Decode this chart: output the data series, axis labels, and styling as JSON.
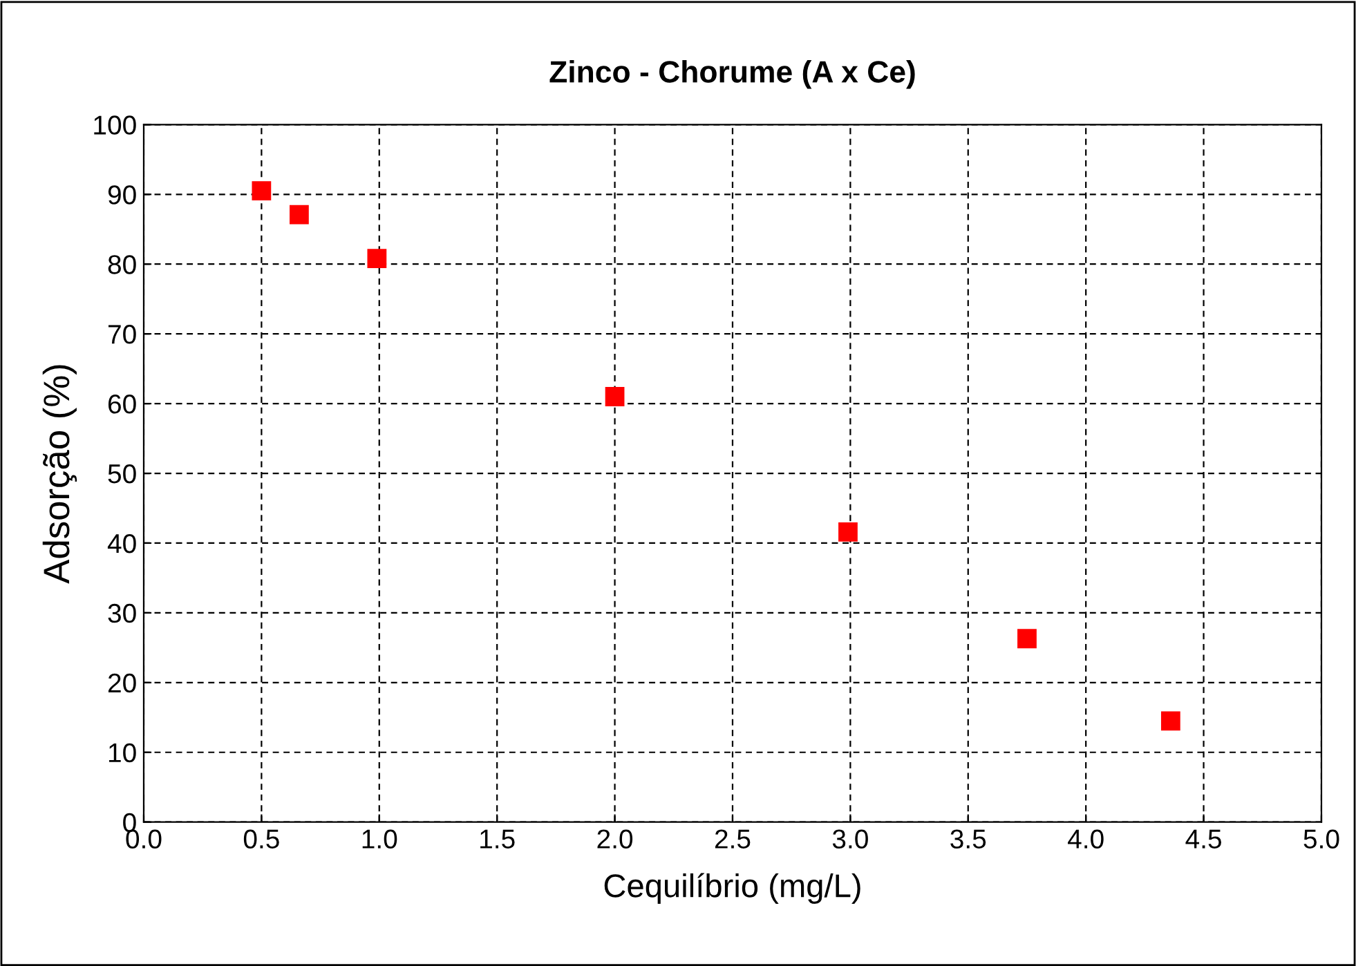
{
  "chart_data": {
    "type": "scatter",
    "title": "Zinco - Chorume (A x Ce)",
    "xlabel": "Cequilíbrio (mg/L)",
    "ylabel": "Adsorção (%)",
    "x": [
      0.5,
      0.66,
      0.99,
      2.0,
      2.99,
      3.75,
      4.36
    ],
    "values": [
      90.5,
      87.1,
      80.8,
      61.0,
      41.6,
      26.3,
      14.5
    ],
    "color": "#ff0000",
    "marker": "square",
    "xlim": [
      0,
      5
    ],
    "xticks": [
      {
        "value": 0,
        "label": "0.0"
      },
      {
        "value": 0.5,
        "label": "0.5"
      },
      {
        "value": 1,
        "label": "1.0"
      },
      {
        "value": 1.5,
        "label": "1.5"
      },
      {
        "value": 2,
        "label": "2.0"
      },
      {
        "value": 2.5,
        "label": "2.5"
      },
      {
        "value": 3,
        "label": "3.0"
      },
      {
        "value": 3.5,
        "label": "3.5"
      },
      {
        "value": 4,
        "label": "4.0"
      },
      {
        "value": 4.5,
        "label": "4.5"
      },
      {
        "value": 5,
        "label": "5.0"
      }
    ],
    "ylim": [
      0,
      100
    ],
    "yticks": [
      0,
      10,
      20,
      30,
      40,
      50,
      60,
      70,
      80,
      90,
      100
    ],
    "grid": true
  }
}
